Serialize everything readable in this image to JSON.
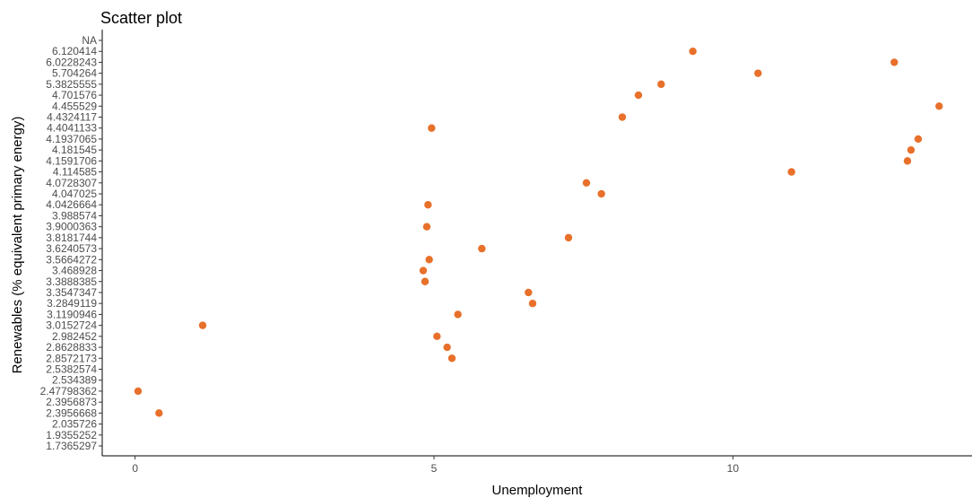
{
  "chart_data": {
    "type": "scatter",
    "title": "Scatter plot",
    "xlabel": "Unemployment",
    "ylabel": "Renewables (% equivalent primary energy)",
    "xlim": [
      -0.55,
      14
    ],
    "x_ticks": [
      0,
      5,
      10
    ],
    "y_categories": [
      "1.7365297",
      "1.9355252",
      "2.035726",
      "2.3956668",
      "2.3956873",
      "2.47798362",
      "2.534389",
      "2.5382574",
      "2.8572173",
      "2.8628833",
      "2.982452",
      "3.0152724",
      "3.1190946",
      "3.2849119",
      "3.3547347",
      "3.3888385",
      "3.468928",
      "3.5664272",
      "3.6240573",
      "3.8181744",
      "3.9000363",
      "3.988574",
      "4.0426664",
      "4.047025",
      "4.0728307",
      "4.114585",
      "4.1591706",
      "4.181545",
      "4.1937065",
      "4.4041133",
      "4.4324117",
      "4.455529",
      "4.701576",
      "5.3825555",
      "5.704264",
      "6.0228243",
      "6.120414",
      "NA"
    ],
    "point_color": "#e8702a",
    "grid": false,
    "points": [
      {
        "x": 0.05,
        "y": "2.47798362"
      },
      {
        "x": 0.4,
        "y": "2.3956668"
      },
      {
        "x": 1.13,
        "y": "3.0152724"
      },
      {
        "x": 4.82,
        "y": "3.468928"
      },
      {
        "x": 4.85,
        "y": "3.3888385"
      },
      {
        "x": 4.88,
        "y": "3.9000363"
      },
      {
        "x": 4.9,
        "y": "4.0426664"
      },
      {
        "x": 4.92,
        "y": "3.5664272"
      },
      {
        "x": 4.96,
        "y": "4.4041133"
      },
      {
        "x": 5.05,
        "y": "2.982452"
      },
      {
        "x": 5.22,
        "y": "2.8628833"
      },
      {
        "x": 5.3,
        "y": "2.8572173"
      },
      {
        "x": 5.4,
        "y": "3.1190946"
      },
      {
        "x": 5.8,
        "y": "3.6240573"
      },
      {
        "x": 6.58,
        "y": "3.3547347"
      },
      {
        "x": 6.65,
        "y": "3.2849119"
      },
      {
        "x": 7.25,
        "y": "3.8181744"
      },
      {
        "x": 7.55,
        "y": "4.0728307"
      },
      {
        "x": 7.8,
        "y": "4.047025"
      },
      {
        "x": 8.15,
        "y": "4.4324117"
      },
      {
        "x": 8.42,
        "y": "4.701576"
      },
      {
        "x": 8.8,
        "y": "5.3825555"
      },
      {
        "x": 9.33,
        "y": "6.120414"
      },
      {
        "x": 10.42,
        "y": "5.704264"
      },
      {
        "x": 10.98,
        "y": "4.114585"
      },
      {
        "x": 12.7,
        "y": "6.0228243"
      },
      {
        "x": 12.92,
        "y": "4.1591706"
      },
      {
        "x": 12.98,
        "y": "4.181545"
      },
      {
        "x": 13.1,
        "y": "4.1937065"
      },
      {
        "x": 13.45,
        "y": "4.455529"
      }
    ]
  }
}
